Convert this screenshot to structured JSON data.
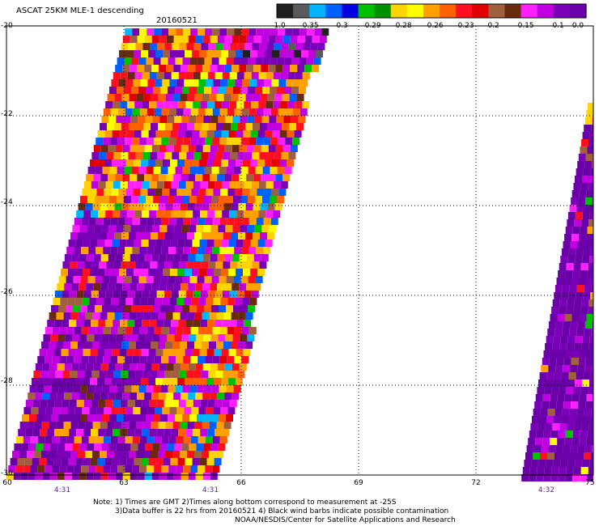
{
  "header": {
    "title": "ASCAT 25KM MLE-1 descending",
    "date": "20160521"
  },
  "colorbar": {
    "labels": [
      "-1.0",
      "-0.35",
      "-0.3",
      "-0.29",
      "-0.28",
      "-0.26",
      "-0.23",
      "-0.2",
      "-0.15",
      "-0.1",
      "0.0"
    ],
    "colors": [
      "#202020",
      "#5a5a5a",
      "#00b4ff",
      "#0060ff",
      "#0000e0",
      "#00c000",
      "#009000",
      "#ffd400",
      "#ffff00",
      "#ffa000",
      "#ff6000",
      "#ff1020",
      "#e00000",
      "#a06040",
      "#6a2a10",
      "#ff20ff",
      "#c000e0",
      "#7a00b8",
      "#6a00a8"
    ]
  },
  "map": {
    "lat_labels": [
      "-20",
      "-22",
      "-24",
      "-26",
      "-28",
      "-30"
    ],
    "lon_labels": [
      "60",
      "63",
      "66",
      "69",
      "72",
      "75"
    ],
    "time_labels": [
      "4:31",
      "4:31",
      "4:32"
    ],
    "lat_range": [
      -30,
      -20
    ],
    "lon_range": [
      60,
      75
    ]
  },
  "notes": {
    "line1": "Note: 1) Times are GMT 2)Times along bottom correspond to measurement at -25S",
    "line2": "3)Data buffer is 22 hrs from 20160521 4) Black wind barbs indicate possible contamination",
    "credit": "NOAA/NESDIS/Center for Satellite Applications and Research"
  }
}
